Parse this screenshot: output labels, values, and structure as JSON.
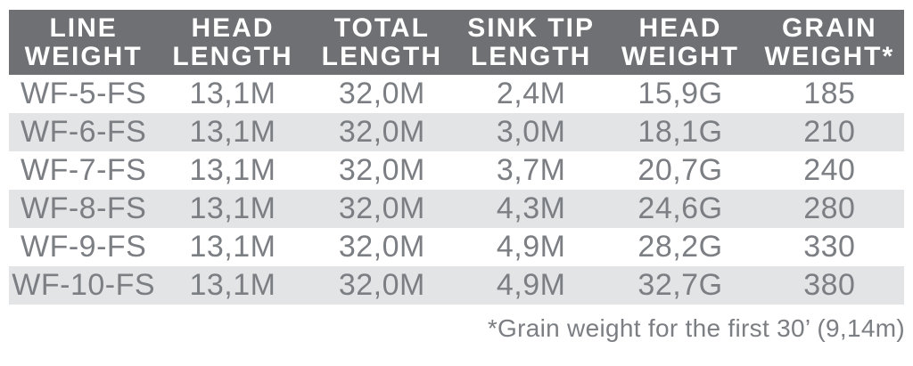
{
  "colors": {
    "page_bg": "#ffffff",
    "header_bg": "#6e7073",
    "header_text": "#ffffff",
    "body_text": "#7b7e82",
    "stripe_bg": "#e3e4e6"
  },
  "chart_data": {
    "type": "table",
    "columns": [
      {
        "name": "LINE WEIGHT",
        "line1": "LINE",
        "line2": "WEIGHT"
      },
      {
        "name": "HEAD LENGTH",
        "line1": "HEAD",
        "line2": "LENGTH"
      },
      {
        "name": "TOTAL LENGTH",
        "line1": "TOTAL",
        "line2": "LENGTH"
      },
      {
        "name": "SINK TIP LENGTH",
        "line1": "SINK TIP",
        "line2": "LENGTH"
      },
      {
        "name": "HEAD WEIGHT",
        "line1": "HEAD",
        "line2": "WEIGHT"
      },
      {
        "name": "GRAIN WEIGHT*",
        "line1": "GRAIN",
        "line2": "WEIGHT*"
      }
    ],
    "rows": [
      [
        "WF-5-FS",
        "13,1M",
        "32,0M",
        "2,4M",
        "15,9G",
        "185"
      ],
      [
        "WF-6-FS",
        "13,1M",
        "32,0M",
        "3,0M",
        "18,1G",
        "210"
      ],
      [
        "WF-7-FS",
        "13,1M",
        "32,0M",
        "3,7M",
        "20,7G",
        "240"
      ],
      [
        "WF-8-FS",
        "13,1M",
        "32,0M",
        "4,3M",
        "24,6G",
        "280"
      ],
      [
        "WF-9-FS",
        "13,1M",
        "32,0M",
        "4,9M",
        "28,2G",
        "330"
      ],
      [
        "WF-10-FS",
        "13,1M",
        "32,0M",
        "4,9M",
        "32,7G",
        "380"
      ]
    ],
    "footnote": "*Grain weight for the first 30’ (9,14m)"
  }
}
